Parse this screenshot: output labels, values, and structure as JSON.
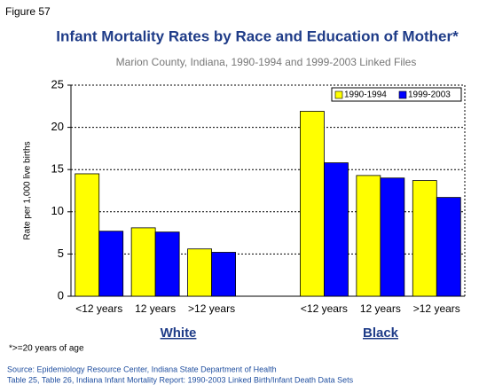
{
  "figure_label": "Figure 57",
  "chart_data": {
    "type": "bar",
    "title": "Infant Mortality Rates by Race and Education of Mother*",
    "subtitle": "Marion County, Indiana, 1990-1994 and 1999-2003 Linked Files",
    "y_label": "Rate per 1,000 live births",
    "categories": [
      "<12 years",
      "12 years",
      ">12 years",
      null,
      "<12 years",
      "12 years",
      ">12 years"
    ],
    "groups": [
      "White",
      "Black"
    ],
    "series": [
      {
        "name": "1990-1994",
        "color": "#ffff00",
        "values": [
          14.5,
          8.1,
          5.6,
          null,
          21.9,
          14.3,
          13.7
        ]
      },
      {
        "name": "1999-2003",
        "color": "#0000ff",
        "values": [
          7.7,
          7.6,
          5.2,
          null,
          15.8,
          14.0,
          11.7
        ]
      }
    ],
    "ylim": [
      0,
      25
    ],
    "yticks": [
      0,
      5,
      10,
      15,
      20,
      25
    ],
    "grid": true,
    "legend": "upper right"
  },
  "footnote": "*>=20 years of age",
  "source": [
    "Source: Epidemiology Resource Center, Indiana State Department of Health",
    "Table 25, Table 26, Indiana Infant Mortality Report: 1990-2003 Linked Birth/Infant Death Data Sets"
  ]
}
